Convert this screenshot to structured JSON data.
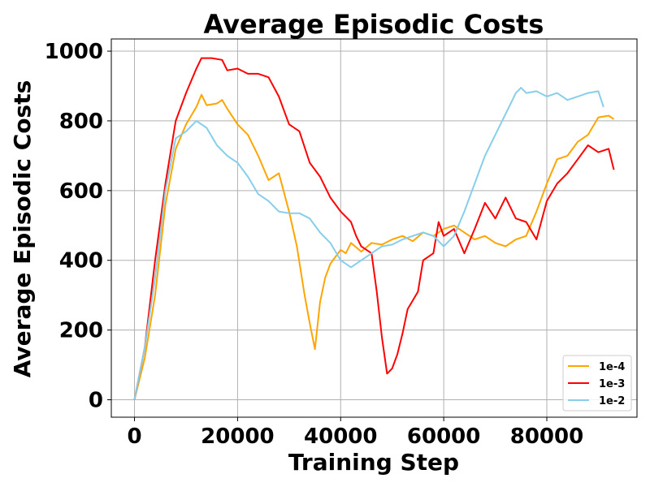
{
  "chart_data": {
    "type": "line",
    "title": "Average Episodic Costs",
    "xlabel": "Training Step",
    "ylabel": "Average Episodic Costs",
    "xlim": [
      -4500,
      97500
    ],
    "ylim": [
      -50,
      1035
    ],
    "xticks": [
      0,
      20000,
      40000,
      60000,
      80000
    ],
    "yticks": [
      0,
      200,
      400,
      600,
      800,
      1000
    ],
    "grid": true,
    "legend_position": "lower-right",
    "series": [
      {
        "name": "1e-4",
        "color": "#FFA500",
        "points": [
          [
            0,
            0
          ],
          [
            2000,
            120
          ],
          [
            4000,
            300
          ],
          [
            6000,
            560
          ],
          [
            8000,
            720
          ],
          [
            10000,
            790
          ],
          [
            12000,
            840
          ],
          [
            13000,
            875
          ],
          [
            14000,
            845
          ],
          [
            16000,
            850
          ],
          [
            17000,
            860
          ],
          [
            18000,
            835
          ],
          [
            20000,
            790
          ],
          [
            22000,
            760
          ],
          [
            24000,
            700
          ],
          [
            26000,
            630
          ],
          [
            28000,
            650
          ],
          [
            30000,
            540
          ],
          [
            31500,
            440
          ],
          [
            33000,
            300
          ],
          [
            34000,
            220
          ],
          [
            35000,
            145
          ],
          [
            36000,
            280
          ],
          [
            37000,
            350
          ],
          [
            38000,
            390
          ],
          [
            39000,
            410
          ],
          [
            40000,
            430
          ],
          [
            41000,
            420
          ],
          [
            42000,
            450
          ],
          [
            44000,
            425
          ],
          [
            46000,
            450
          ],
          [
            48000,
            445
          ],
          [
            50000,
            460
          ],
          [
            52000,
            470
          ],
          [
            54000,
            455
          ],
          [
            56000,
            480
          ],
          [
            58000,
            470
          ],
          [
            60000,
            490
          ],
          [
            62000,
            500
          ],
          [
            64000,
            480
          ],
          [
            66000,
            460
          ],
          [
            68000,
            470
          ],
          [
            70000,
            450
          ],
          [
            72000,
            440
          ],
          [
            74000,
            460
          ],
          [
            76000,
            470
          ],
          [
            78000,
            540
          ],
          [
            80000,
            620
          ],
          [
            82000,
            690
          ],
          [
            84000,
            700
          ],
          [
            86000,
            740
          ],
          [
            88000,
            760
          ],
          [
            90000,
            810
          ],
          [
            92000,
            815
          ],
          [
            93000,
            805
          ]
        ]
      },
      {
        "name": "1e-3",
        "color": "#FF0000",
        "points": [
          [
            0,
            0
          ],
          [
            2000,
            150
          ],
          [
            4000,
            400
          ],
          [
            6000,
            620
          ],
          [
            8000,
            800
          ],
          [
            10000,
            880
          ],
          [
            12000,
            950
          ],
          [
            13000,
            980
          ],
          [
            15000,
            980
          ],
          [
            17000,
            975
          ],
          [
            18000,
            945
          ],
          [
            20000,
            950
          ],
          [
            22000,
            935
          ],
          [
            24000,
            935
          ],
          [
            26000,
            925
          ],
          [
            28000,
            870
          ],
          [
            30000,
            790
          ],
          [
            32000,
            770
          ],
          [
            34000,
            680
          ],
          [
            36000,
            640
          ],
          [
            38000,
            580
          ],
          [
            40000,
            540
          ],
          [
            42000,
            510
          ],
          [
            43000,
            470
          ],
          [
            44000,
            440
          ],
          [
            45000,
            430
          ],
          [
            46000,
            420
          ],
          [
            47000,
            310
          ],
          [
            48000,
            180
          ],
          [
            49000,
            75
          ],
          [
            50000,
            90
          ],
          [
            51000,
            130
          ],
          [
            52000,
            190
          ],
          [
            53000,
            260
          ],
          [
            55000,
            310
          ],
          [
            56000,
            400
          ],
          [
            58000,
            420
          ],
          [
            59000,
            510
          ],
          [
            60000,
            470
          ],
          [
            62000,
            490
          ],
          [
            64000,
            420
          ],
          [
            66000,
            490
          ],
          [
            68000,
            565
          ],
          [
            70000,
            520
          ],
          [
            72000,
            580
          ],
          [
            74000,
            520
          ],
          [
            76000,
            510
          ],
          [
            78000,
            460
          ],
          [
            80000,
            570
          ],
          [
            82000,
            620
          ],
          [
            84000,
            650
          ],
          [
            86000,
            690
          ],
          [
            88000,
            730
          ],
          [
            90000,
            710
          ],
          [
            92000,
            720
          ],
          [
            93000,
            660
          ]
        ]
      },
      {
        "name": "1e-2",
        "color": "#87CEEB",
        "points": [
          [
            0,
            0
          ],
          [
            2000,
            150
          ],
          [
            4000,
            350
          ],
          [
            6000,
            600
          ],
          [
            8000,
            750
          ],
          [
            10000,
            770
          ],
          [
            12000,
            800
          ],
          [
            14000,
            780
          ],
          [
            16000,
            730
          ],
          [
            18000,
            700
          ],
          [
            20000,
            680
          ],
          [
            22000,
            640
          ],
          [
            24000,
            590
          ],
          [
            26000,
            570
          ],
          [
            28000,
            540
          ],
          [
            30000,
            535
          ],
          [
            32000,
            535
          ],
          [
            34000,
            520
          ],
          [
            36000,
            480
          ],
          [
            38000,
            450
          ],
          [
            40000,
            400
          ],
          [
            42000,
            380
          ],
          [
            44000,
            400
          ],
          [
            46000,
            420
          ],
          [
            48000,
            440
          ],
          [
            50000,
            445
          ],
          [
            52000,
            460
          ],
          [
            54000,
            470
          ],
          [
            56000,
            480
          ],
          [
            58000,
            470
          ],
          [
            60000,
            440
          ],
          [
            62000,
            470
          ],
          [
            64000,
            540
          ],
          [
            66000,
            620
          ],
          [
            68000,
            700
          ],
          [
            70000,
            760
          ],
          [
            72000,
            820
          ],
          [
            74000,
            880
          ],
          [
            75000,
            895
          ],
          [
            76000,
            880
          ],
          [
            78000,
            885
          ],
          [
            80000,
            870
          ],
          [
            82000,
            880
          ],
          [
            84000,
            860
          ],
          [
            86000,
            870
          ],
          [
            88000,
            880
          ],
          [
            90000,
            885
          ],
          [
            91000,
            840
          ]
        ]
      }
    ]
  }
}
